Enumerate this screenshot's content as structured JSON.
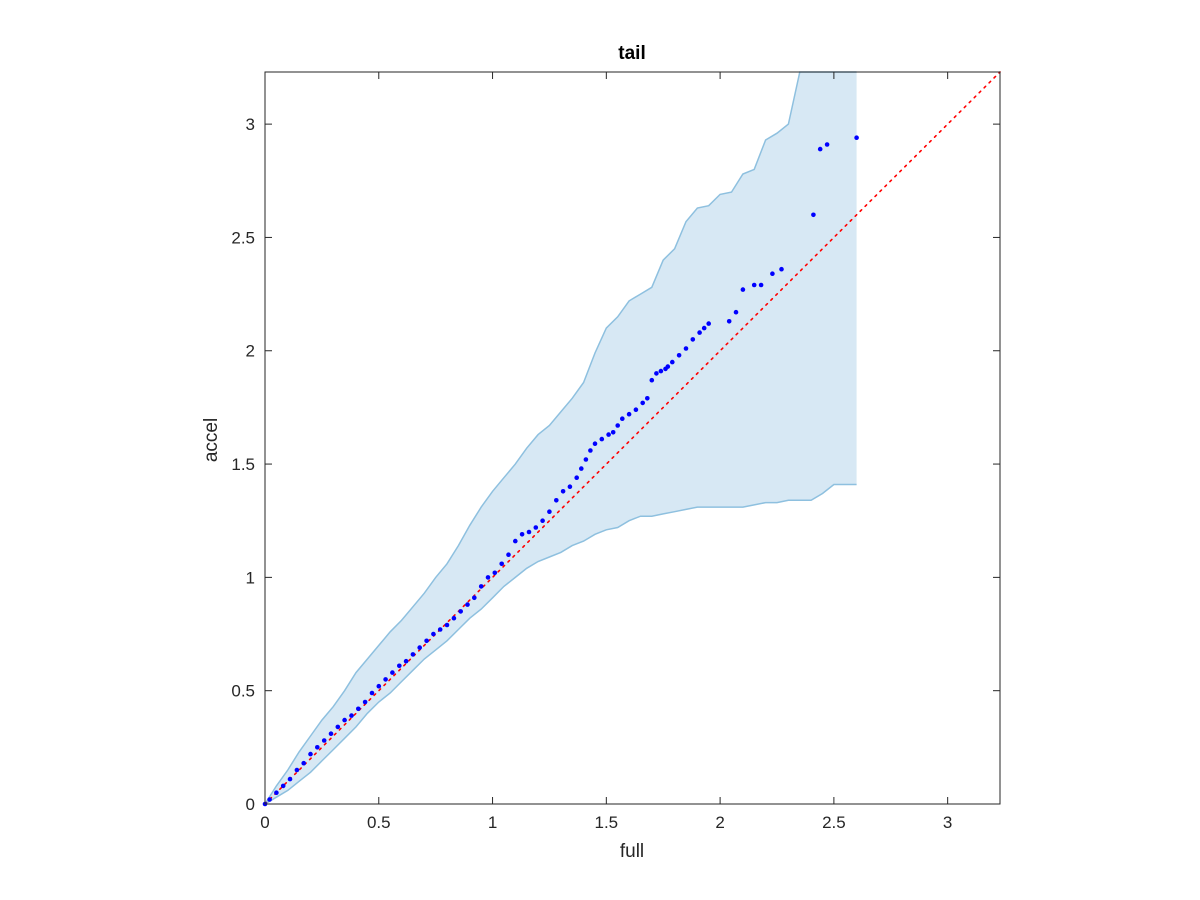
{
  "chart_data": {
    "type": "scatter",
    "title": "tail",
    "xlabel": "full",
    "ylabel": "accel",
    "xlim": [
      0,
      3.23
    ],
    "ylim": [
      0,
      3.23
    ],
    "x_ticks": [
      "0",
      "0.5",
      "1",
      "1.5",
      "2",
      "2.5",
      "3"
    ],
    "y_ticks": [
      "0",
      "0.5",
      "1",
      "1.5",
      "2",
      "2.5",
      "3"
    ],
    "grid": false,
    "legend": "none",
    "colors": {
      "points": "#0000ff",
      "reference_line": "#ff0000",
      "band_fill": "#d7e8f4",
      "band_edge": "#8ec0df",
      "axes": "#262626"
    },
    "reference_line": {
      "style": "dotted",
      "x": [
        0,
        3.23
      ],
      "y": [
        0,
        3.23
      ]
    },
    "band": {
      "x": [
        0,
        0.05,
        0.1,
        0.15,
        0.2,
        0.25,
        0.3,
        0.35,
        0.4,
        0.45,
        0.5,
        0.55,
        0.6,
        0.65,
        0.7,
        0.75,
        0.8,
        0.85,
        0.9,
        0.95,
        1.0,
        1.05,
        1.1,
        1.15,
        1.2,
        1.25,
        1.3,
        1.35,
        1.4,
        1.45,
        1.5,
        1.55,
        1.6,
        1.65,
        1.7,
        1.75,
        1.8,
        1.85,
        1.9,
        1.95,
        2.0,
        2.05,
        2.1,
        2.15,
        2.2,
        2.25,
        2.3,
        2.35,
        2.4,
        2.45,
        2.5,
        2.55,
        2.6
      ],
      "upper": [
        0,
        0.08,
        0.15,
        0.23,
        0.3,
        0.37,
        0.43,
        0.5,
        0.58,
        0.64,
        0.7,
        0.76,
        0.81,
        0.87,
        0.93,
        1.0,
        1.06,
        1.14,
        1.23,
        1.31,
        1.38,
        1.44,
        1.5,
        1.57,
        1.63,
        1.67,
        1.73,
        1.79,
        1.86,
        1.99,
        2.1,
        2.15,
        2.22,
        2.25,
        2.28,
        2.4,
        2.45,
        2.57,
        2.63,
        2.64,
        2.69,
        2.7,
        2.78,
        2.8,
        2.93,
        2.96,
        3.0,
        3.23,
        3.23,
        3.23,
        3.23,
        3.23,
        3.23
      ],
      "lower": [
        0,
        0.03,
        0.06,
        0.1,
        0.14,
        0.19,
        0.24,
        0.29,
        0.34,
        0.4,
        0.45,
        0.49,
        0.54,
        0.59,
        0.64,
        0.68,
        0.72,
        0.77,
        0.82,
        0.86,
        0.91,
        0.96,
        1.0,
        1.04,
        1.07,
        1.09,
        1.11,
        1.14,
        1.16,
        1.19,
        1.21,
        1.22,
        1.25,
        1.27,
        1.27,
        1.28,
        1.29,
        1.3,
        1.31,
        1.31,
        1.31,
        1.31,
        1.31,
        1.32,
        1.33,
        1.33,
        1.34,
        1.34,
        1.34,
        1.37,
        1.41,
        1.41,
        1.41
      ]
    },
    "points": {
      "x": [
        0.0,
        0.02,
        0.05,
        0.08,
        0.11,
        0.14,
        0.17,
        0.2,
        0.23,
        0.26,
        0.29,
        0.32,
        0.35,
        0.38,
        0.41,
        0.44,
        0.47,
        0.5,
        0.53,
        0.56,
        0.59,
        0.62,
        0.65,
        0.68,
        0.71,
        0.74,
        0.77,
        0.8,
        0.83,
        0.86,
        0.89,
        0.92,
        0.95,
        0.98,
        1.01,
        1.04,
        1.07,
        1.1,
        1.13,
        1.16,
        1.19,
        1.22,
        1.25,
        1.28,
        1.31,
        1.34,
        1.37,
        1.39,
        1.41,
        1.43,
        1.45,
        1.48,
        1.51,
        1.53,
        1.55,
        1.57,
        1.6,
        1.63,
        1.66,
        1.68,
        1.7,
        1.72,
        1.74,
        1.76,
        1.77,
        1.79,
        1.82,
        1.85,
        1.88,
        1.91,
        1.93,
        1.95,
        2.04,
        2.07,
        2.1,
        2.15,
        2.18,
        2.23,
        2.27,
        2.41,
        2.44,
        2.47,
        2.6
      ],
      "y": [
        0.0,
        0.02,
        0.05,
        0.08,
        0.11,
        0.15,
        0.18,
        0.22,
        0.25,
        0.28,
        0.31,
        0.34,
        0.37,
        0.39,
        0.42,
        0.45,
        0.49,
        0.52,
        0.55,
        0.58,
        0.61,
        0.63,
        0.66,
        0.69,
        0.72,
        0.75,
        0.77,
        0.79,
        0.82,
        0.85,
        0.88,
        0.91,
        0.96,
        1.0,
        1.02,
        1.06,
        1.1,
        1.16,
        1.19,
        1.2,
        1.22,
        1.25,
        1.29,
        1.34,
        1.38,
        1.4,
        1.44,
        1.48,
        1.52,
        1.56,
        1.59,
        1.61,
        1.63,
        1.64,
        1.67,
        1.7,
        1.72,
        1.74,
        1.77,
        1.79,
        1.87,
        1.9,
        1.91,
        1.92,
        1.93,
        1.95,
        1.98,
        2.01,
        2.05,
        2.08,
        2.1,
        2.12,
        2.13,
        2.17,
        2.27,
        2.29,
        2.29,
        2.34,
        2.36,
        2.6,
        2.89,
        2.91,
        2.94
      ]
    }
  }
}
